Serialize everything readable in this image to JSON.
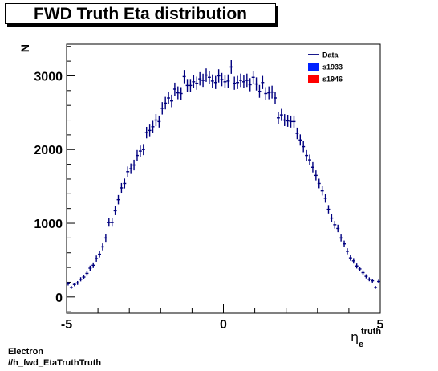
{
  "chart_data": {
    "type": "scatter",
    "title": "FWD Truth Eta distribution",
    "ylabel": "N",
    "xlabel_main": "η",
    "xlabel_sub": "e",
    "xlabel_sup": "truth",
    "xlim": [
      -5,
      5
    ],
    "ylim": [
      -220,
      3430
    ],
    "x_ticks": [
      -5,
      0,
      5
    ],
    "y_ticks": [
      0,
      1000,
      2000,
      3000
    ],
    "grid": false,
    "legend_position": "top-right",
    "legend": [
      {
        "label": "Data",
        "marker": "line",
        "color": "#00007f"
      },
      {
        "label": "s1933",
        "marker": "box",
        "color": "#0022ff"
      },
      {
        "label": "s1946",
        "marker": "box",
        "color": "#ff0000"
      }
    ],
    "series": [
      {
        "name": "Data",
        "color": "#00007f",
        "x_error": 0.05,
        "x": [
          -4.95,
          -4.85,
          -4.75,
          -4.65,
          -4.55,
          -4.45,
          -4.35,
          -4.25,
          -4.15,
          -4.05,
          -3.95,
          -3.85,
          -3.75,
          -3.65,
          -3.55,
          -3.45,
          -3.35,
          -3.25,
          -3.15,
          -3.05,
          -2.95,
          -2.85,
          -2.75,
          -2.65,
          -2.55,
          -2.45,
          -2.35,
          -2.25,
          -2.15,
          -2.05,
          -1.95,
          -1.85,
          -1.75,
          -1.65,
          -1.55,
          -1.45,
          -1.35,
          -1.25,
          -1.15,
          -1.05,
          -0.95,
          -0.85,
          -0.75,
          -0.65,
          -0.55,
          -0.45,
          -0.35,
          -0.25,
          -0.15,
          -0.05,
          0.05,
          0.15,
          0.25,
          0.35,
          0.45,
          0.55,
          0.65,
          0.75,
          0.85,
          0.95,
          1.05,
          1.15,
          1.25,
          1.35,
          1.45,
          1.55,
          1.65,
          1.75,
          1.85,
          1.95,
          2.05,
          2.15,
          2.25,
          2.35,
          2.45,
          2.55,
          2.65,
          2.75,
          2.85,
          2.95,
          3.05,
          3.15,
          3.25,
          3.35,
          3.45,
          3.55,
          3.65,
          3.75,
          3.85,
          3.95,
          4.05,
          4.15,
          4.25,
          4.35,
          4.45,
          4.55,
          4.65,
          4.75,
          4.85,
          4.95
        ],
        "y": [
          180,
          130,
          170,
          190,
          240,
          270,
          320,
          390,
          430,
          520,
          580,
          680,
          800,
          1010,
          1010,
          1170,
          1320,
          1480,
          1540,
          1700,
          1740,
          1790,
          1920,
          1980,
          2000,
          2230,
          2260,
          2310,
          2400,
          2380,
          2560,
          2630,
          2700,
          2660,
          2820,
          2770,
          2760,
          2990,
          2870,
          2870,
          2920,
          2900,
          2960,
          2940,
          3010,
          2980,
          2930,
          2910,
          3000,
          2950,
          2920,
          2930,
          3120,
          2900,
          2910,
          2940,
          2920,
          2940,
          2880,
          2980,
          2890,
          2790,
          2910,
          2760,
          2770,
          2780,
          2700,
          2430,
          2470,
          2400,
          2390,
          2380,
          2380,
          2220,
          2130,
          2040,
          1920,
          1860,
          1760,
          1650,
          1540,
          1440,
          1340,
          1190,
          1070,
          980,
          930,
          800,
          720,
          620,
          530,
          490,
          420,
          380,
          330,
          280,
          240,
          220,
          130,
          210
        ],
        "y_error": [
          24,
          20,
          24,
          26,
          28,
          30,
          32,
          35,
          38,
          42,
          44,
          47,
          52,
          56,
          56,
          60,
          63,
          66,
          67,
          70,
          71,
          72,
          74,
          75,
          75,
          78,
          79,
          80,
          82,
          81,
          84,
          85,
          86,
          85,
          88,
          87,
          87,
          90,
          88,
          88,
          89,
          89,
          90,
          89,
          91,
          90,
          89,
          89,
          90,
          90,
          89,
          89,
          92,
          89,
          89,
          90,
          89,
          90,
          89,
          90,
          89,
          87,
          89,
          87,
          87,
          87,
          86,
          82,
          82,
          81,
          81,
          81,
          81,
          78,
          76,
          75,
          73,
          72,
          70,
          68,
          65,
          63,
          61,
          57,
          55,
          52,
          51,
          47,
          45,
          41,
          38,
          37,
          34,
          32,
          30,
          28,
          26,
          25,
          19,
          24
        ]
      }
    ]
  },
  "footer": {
    "line1": "Electron",
    "line2": "//h_fwd_EtaTruthTruth"
  }
}
